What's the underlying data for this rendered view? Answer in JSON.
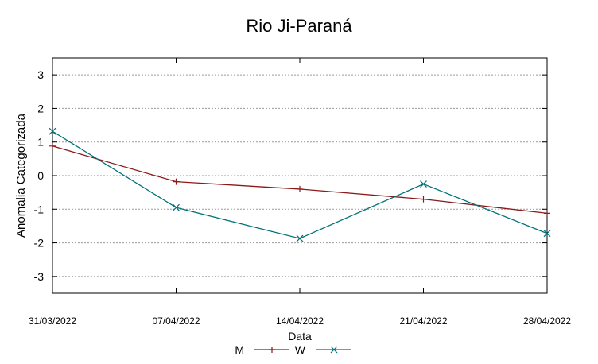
{
  "chart_data": {
    "type": "line",
    "title": "Rio Ji-Paraná",
    "xlabel": "Data",
    "ylabel": "Anomalia Categorizada",
    "categories": [
      "31/03/2022",
      "07/04/2022",
      "14/04/2022",
      "21/04/2022",
      "28/04/2022"
    ],
    "yticks": [
      "3",
      "2",
      "1",
      "0",
      "-1",
      "-2",
      "-3"
    ],
    "ylim": [
      -3.5,
      3.5
    ],
    "grid": true,
    "legend_position": "bottom",
    "series": [
      {
        "name": "M",
        "color": "#8b1a1a",
        "marker": "plus",
        "values": [
          0.88,
          -0.18,
          -0.4,
          -0.7,
          -1.12
        ]
      },
      {
        "name": "W",
        "color": "#00727a",
        "marker": "cross",
        "values": [
          1.32,
          -0.95,
          -1.87,
          -0.25,
          -1.72
        ]
      }
    ]
  }
}
